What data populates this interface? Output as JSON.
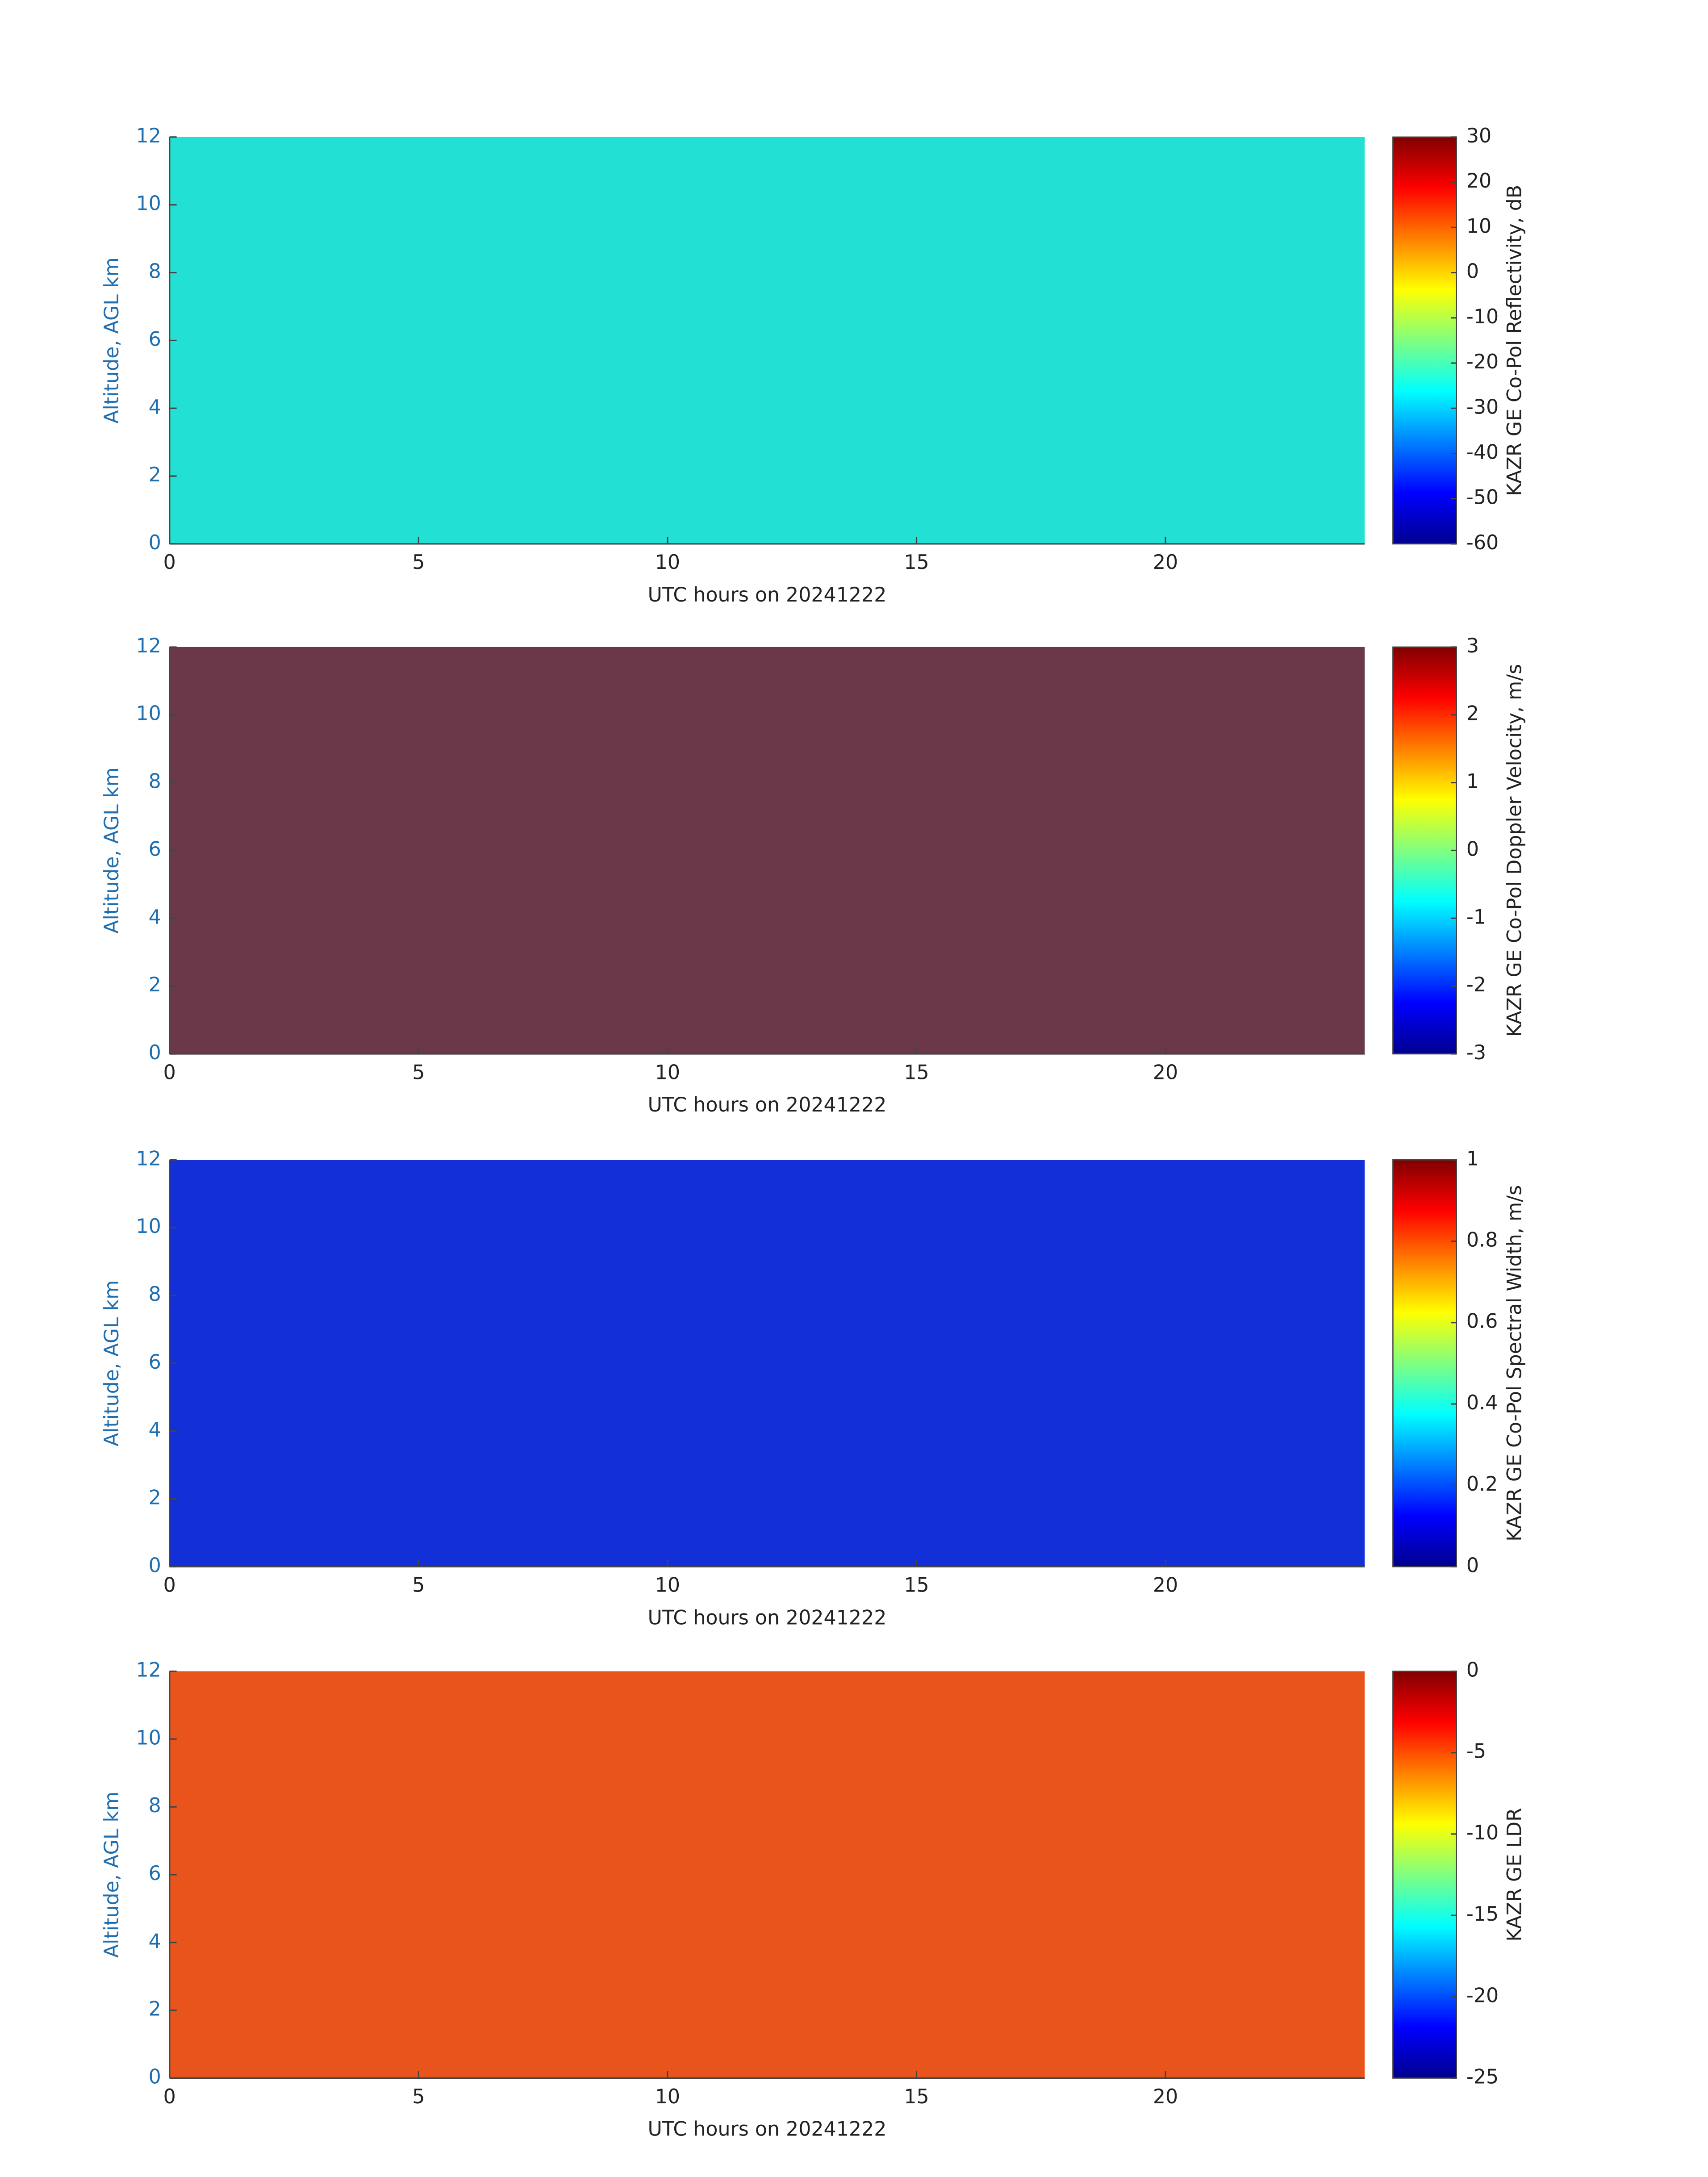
{
  "chart_data": [
    {
      "type": "heatmap",
      "xlabel": "UTC hours on 20241222",
      "ylabel": "Altitude, AGL km",
      "clabel": "KAZR GE Co-Pol Reflectivity, dB",
      "xlim": [
        0,
        24
      ],
      "ylim": [
        0,
        12
      ],
      "xticks": [
        0,
        5,
        10,
        15,
        20
      ],
      "yticks": [
        0,
        2,
        4,
        6,
        8,
        10,
        12
      ],
      "clim": [
        -60,
        30
      ],
      "cticks": [
        -60,
        -50,
        -40,
        -30,
        -20,
        -10,
        0,
        10,
        20,
        30
      ],
      "colormap": [
        "#00008f",
        "#0000ff",
        "#0080ff",
        "#00ffff",
        "#80ff80",
        "#ffff00",
        "#ff8000",
        "#ff0000",
        "#800000"
      ],
      "background": "#22e0d4"
    },
    {
      "type": "heatmap",
      "xlabel": "UTC hours on 20241222",
      "ylabel": "Altitude, AGL km",
      "clabel": "KAZR GE Co-Pol Doppler Velocity, m/s",
      "xlim": [
        0,
        24
      ],
      "ylim": [
        0,
        12
      ],
      "xticks": [
        0,
        5,
        10,
        15,
        20
      ],
      "yticks": [
        0,
        2,
        4,
        6,
        8,
        10,
        12
      ],
      "clim": [
        -3,
        3
      ],
      "cticks": [
        -3,
        -2,
        -1,
        0,
        1,
        2,
        3
      ],
      "colormap": [
        "#00008f",
        "#0000ff",
        "#0080ff",
        "#00ffff",
        "#80ff80",
        "#ffff00",
        "#ff8000",
        "#ff0000",
        "#800000"
      ],
      "background": "#6a3848"
    },
    {
      "type": "heatmap",
      "xlabel": "UTC hours on 20241222",
      "ylabel": "Altitude, AGL km",
      "clabel": "KAZR GE Co-Pol Spectral Width, m/s",
      "xlim": [
        0,
        24
      ],
      "ylim": [
        0,
        12
      ],
      "xticks": [
        0,
        5,
        10,
        15,
        20
      ],
      "yticks": [
        0,
        2,
        4,
        6,
        8,
        10,
        12
      ],
      "clim": [
        0,
        1
      ],
      "cticks": [
        0,
        0.2,
        0.4,
        0.6,
        0.8,
        1
      ],
      "colormap": [
        "#00008f",
        "#0000ff",
        "#0080ff",
        "#00ffff",
        "#80ff80",
        "#ffff00",
        "#ff8000",
        "#ff0000",
        "#800000"
      ],
      "background": "#1330d8"
    },
    {
      "type": "heatmap",
      "xlabel": "UTC hours on 20241222",
      "ylabel": "Altitude, AGL km",
      "clabel": "KAZR GE LDR",
      "xlim": [
        0,
        24
      ],
      "ylim": [
        0,
        12
      ],
      "xticks": [
        0,
        5,
        10,
        15,
        20
      ],
      "yticks": [
        0,
        2,
        4,
        6,
        8,
        10,
        12
      ],
      "clim": [
        -25,
        0
      ],
      "cticks": [
        -25,
        -20,
        -15,
        -10,
        -5,
        0
      ],
      "colormap": [
        "#00008f",
        "#0000ff",
        "#0080ff",
        "#00ffff",
        "#80ff80",
        "#ffff00",
        "#ff8000",
        "#ff0000",
        "#800000"
      ],
      "background": "#e8541c"
    }
  ]
}
